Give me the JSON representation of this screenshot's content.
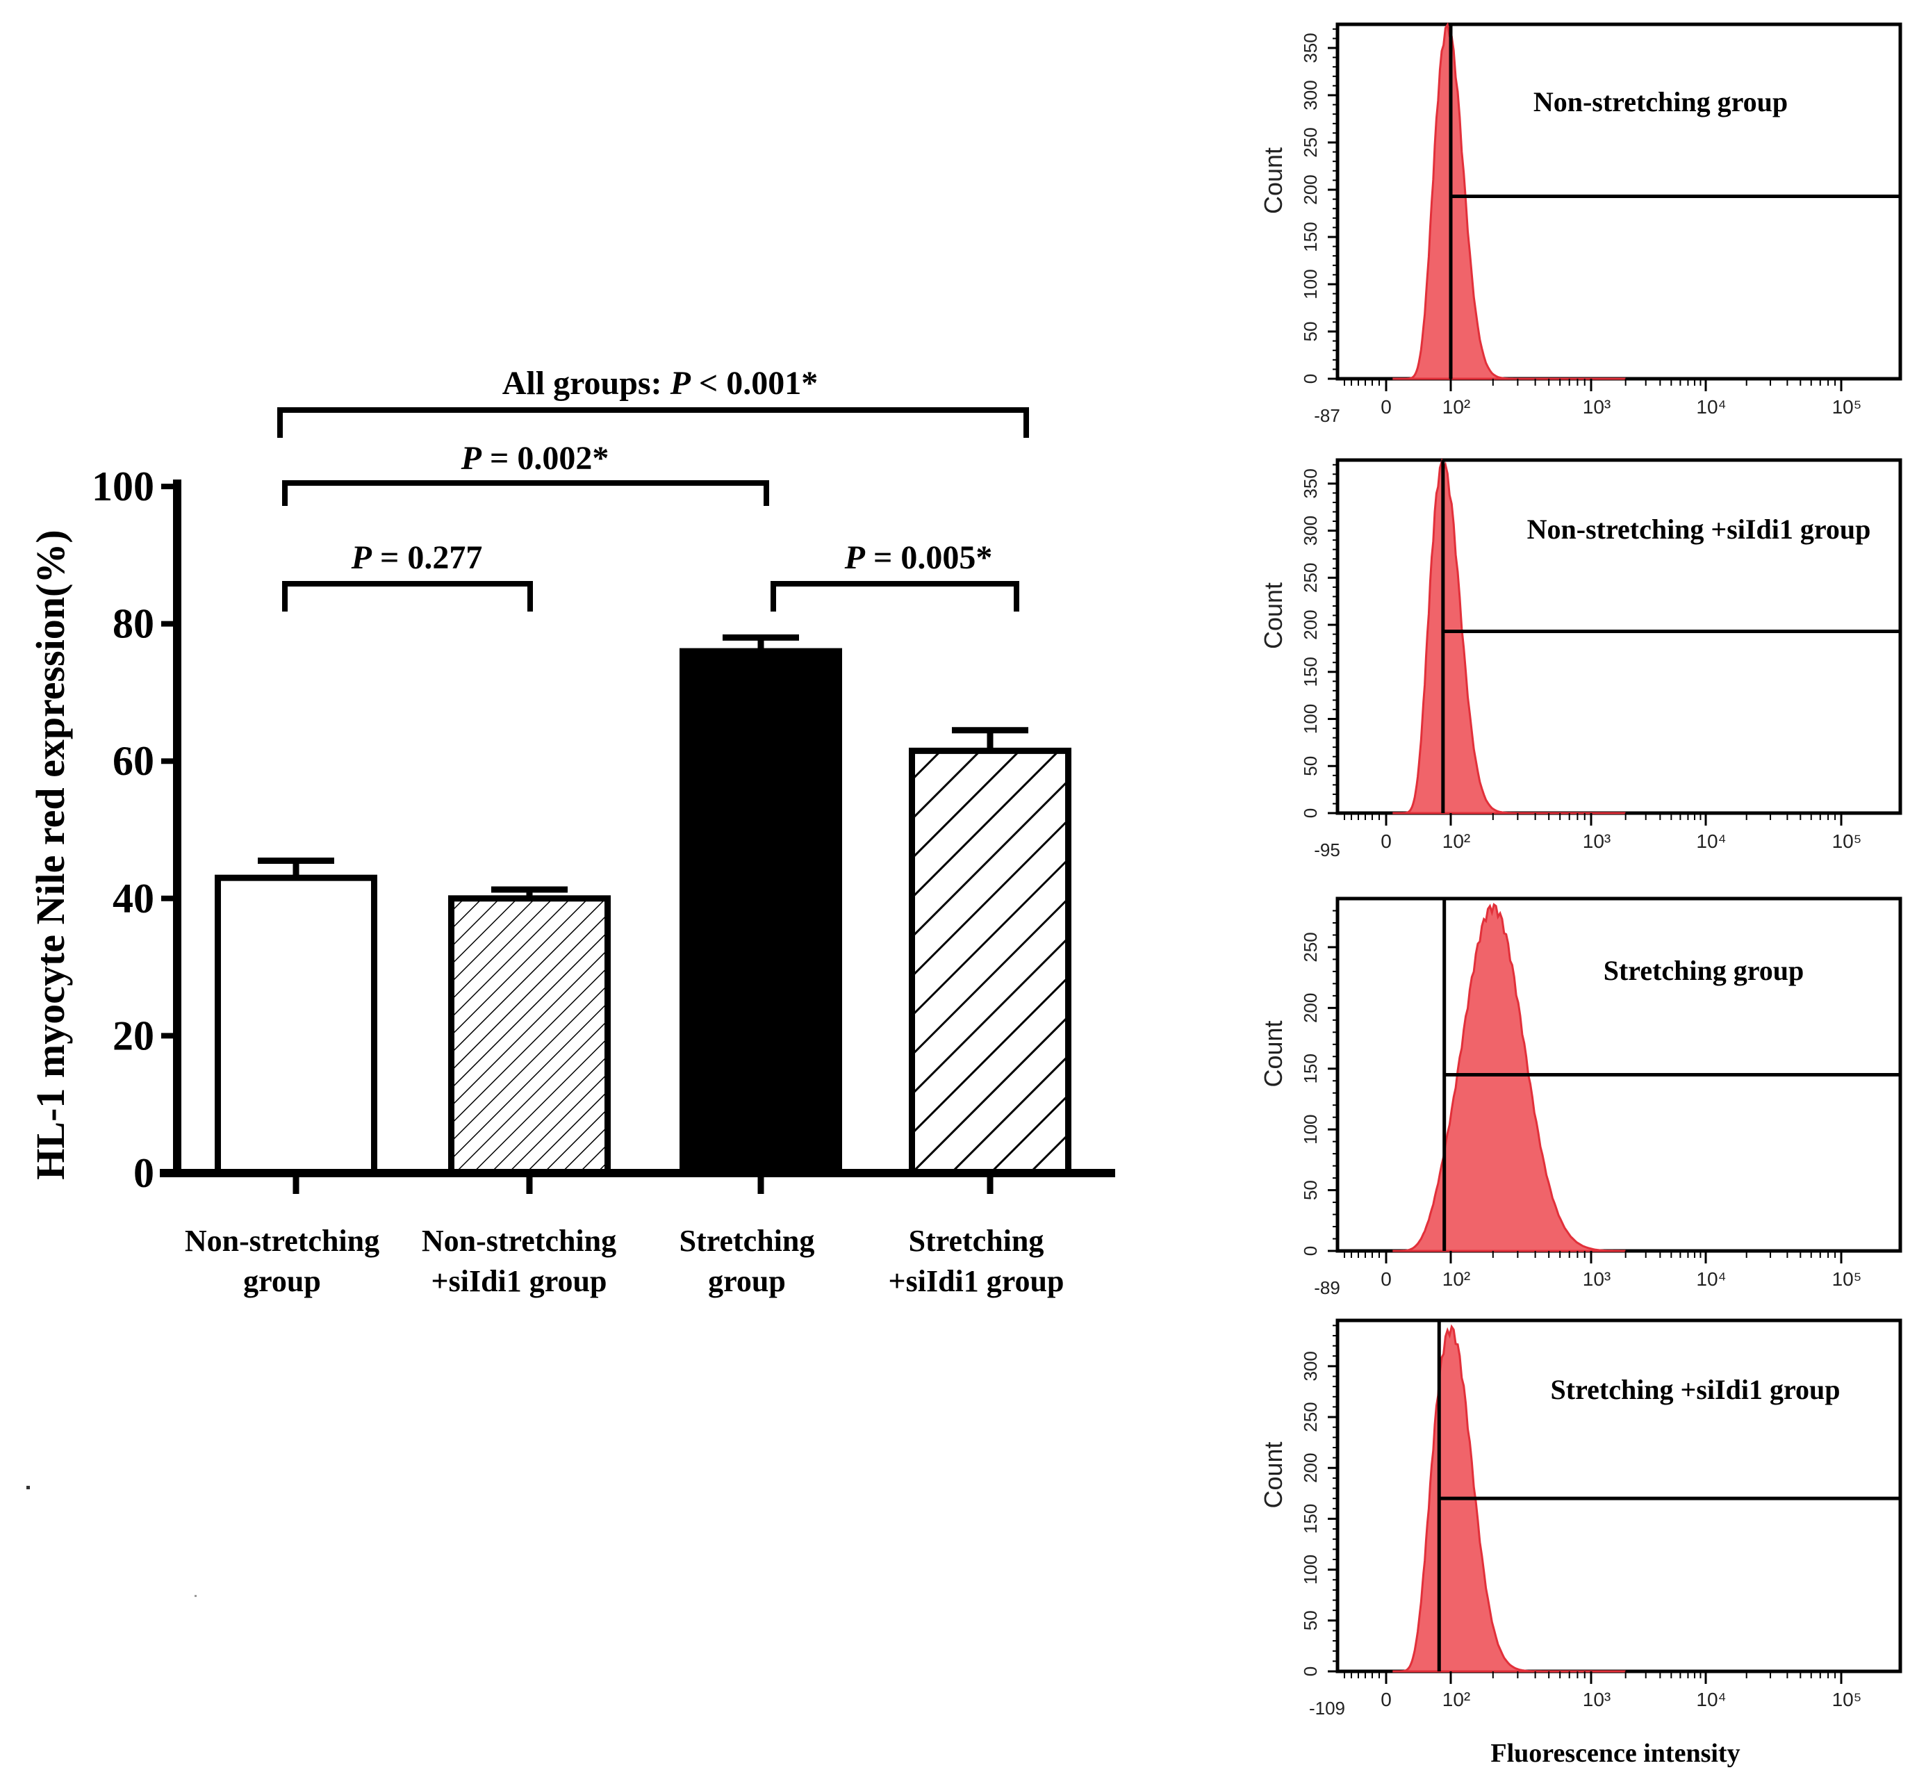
{
  "chart_data": [
    {
      "type": "bar",
      "title": "",
      "xlabel": "",
      "ylabel": "HL-1 myocyte Nile red expression(%)",
      "ylim": [
        0,
        100
      ],
      "yticks": [
        "0",
        "20",
        "40",
        "60",
        "80",
        "100"
      ],
      "categories": [
        [
          "Non-stretching",
          "group"
        ],
        [
          "Non-stretching",
          "+siIdi1 group"
        ],
        [
          "Stretching",
          "group"
        ],
        [
          "Stretching",
          "+siIdi1 group"
        ]
      ],
      "values": [
        43,
        40,
        76,
        61.5
      ],
      "errors": [
        2.5,
        1.3,
        2.0,
        3.0
      ],
      "fills": [
        "white",
        "fine-hatch",
        "black",
        "wide-hatch"
      ],
      "significance": [
        {
          "prefix": "",
          "p": "P",
          "text": " = 0.277",
          "from": 0,
          "to": 1
        },
        {
          "prefix": "",
          "p": "P",
          "text": " = 0.002*",
          "from": 0,
          "to": 2
        },
        {
          "prefix": "",
          "p": "P",
          "text": " = 0.005*",
          "from": 2,
          "to": 3
        },
        {
          "prefix": "All groups: ",
          "p": "P",
          "text": " < 0.001*",
          "from": 0,
          "to": 3
        }
      ]
    },
    {
      "type": "histogram",
      "title": "Non-stretching group",
      "ylabel": "Count",
      "xlabel": "",
      "ylim": [
        0,
        375
      ],
      "yticks": [
        "0",
        "50",
        "100",
        "150",
        "200",
        "250",
        "300",
        "350"
      ],
      "xtick_first": "-87",
      "xticks": [
        "0",
        "10²",
        "10³",
        "10⁴",
        "10⁵"
      ],
      "peak_x": 95,
      "peak_count": 370,
      "spread": 0.11,
      "gate_x": 100,
      "gate_count": 193,
      "color": "#f0646a"
    },
    {
      "type": "histogram",
      "title": "Non-stretching +siIdi1 group",
      "ylabel": "Count",
      "xlabel": "",
      "ylim": [
        0,
        375
      ],
      "yticks": [
        "0",
        "50",
        "100",
        "150",
        "200",
        "250",
        "300",
        "350"
      ],
      "xtick_first": "-95",
      "xticks": [
        "0",
        "10²",
        "10³",
        "10⁴",
        "10⁵"
      ],
      "peak_x": 88,
      "peak_count": 370,
      "spread": 0.12,
      "gate_x": 88,
      "gate_count": 193,
      "color": "#f0646a"
    },
    {
      "type": "histogram",
      "title": "Stretching group",
      "ylabel": "Count",
      "xlabel": "",
      "ylim": [
        0,
        290
      ],
      "yticks": [
        "0",
        "50",
        "100",
        "150",
        "200",
        "250"
      ],
      "xtick_first": "-89",
      "xticks": [
        "0",
        "10²",
        "10³",
        "10⁴",
        "10⁵"
      ],
      "peak_x": 200,
      "peak_count": 282,
      "spread": 0.22,
      "gate_x": 90,
      "gate_count": 145,
      "color": "#f0646a"
    },
    {
      "type": "histogram",
      "title": "Stretching +siIdi1 group",
      "ylabel": "Count",
      "xlabel": "Fluorescence intensity",
      "ylim": [
        0,
        345
      ],
      "yticks": [
        "0",
        "50",
        "100",
        "150",
        "200",
        "250",
        "300"
      ],
      "xtick_first": "-109",
      "xticks": [
        "0",
        "10²",
        "10³",
        "10⁴",
        "10⁵"
      ],
      "peak_x": 100,
      "peak_count": 335,
      "spread": 0.15,
      "gate_x": 82,
      "gate_count": 170,
      "color": "#f0646a"
    }
  ]
}
